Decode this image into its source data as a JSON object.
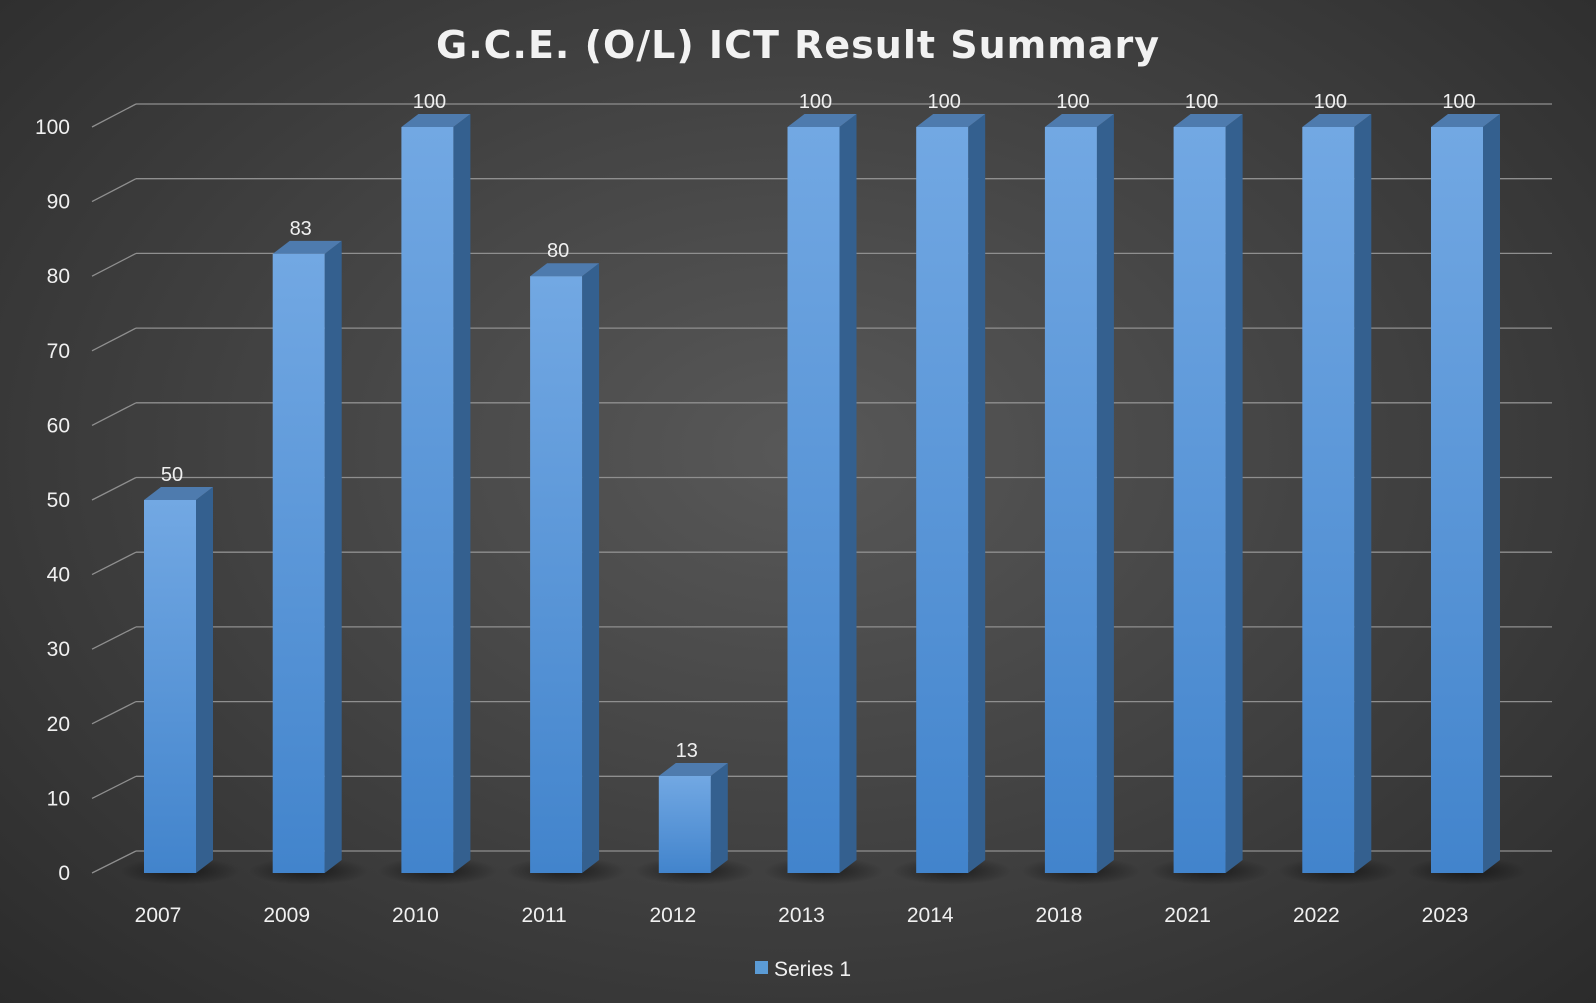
{
  "chart_data": {
    "type": "bar",
    "title": "G.C.E. (O/L) ICT Result Summary",
    "categories": [
      "2007",
      "2009",
      "2010",
      "2011",
      "2012",
      "2013",
      "2014",
      "2018",
      "2021",
      "2022",
      "2023"
    ],
    "series": [
      {
        "name": "Series 1",
        "values": [
          50,
          83,
          100,
          80,
          13,
          100,
          100,
          100,
          100,
          100,
          100
        ]
      }
    ],
    "ylim": [
      0,
      100
    ],
    "yticks": [
      0,
      10,
      20,
      30,
      40,
      50,
      60,
      70,
      80,
      90,
      100
    ],
    "grid": true,
    "legend_position": "bottom",
    "style": "3d-column",
    "colors": {
      "bar_front_top": "#72a8e3",
      "bar_front_bottom": "#4284cc",
      "bar_side": "#34608f",
      "bar_top": "#4e7bae",
      "gridline": "#8f8f8f",
      "text": "#f0f0f0"
    }
  }
}
